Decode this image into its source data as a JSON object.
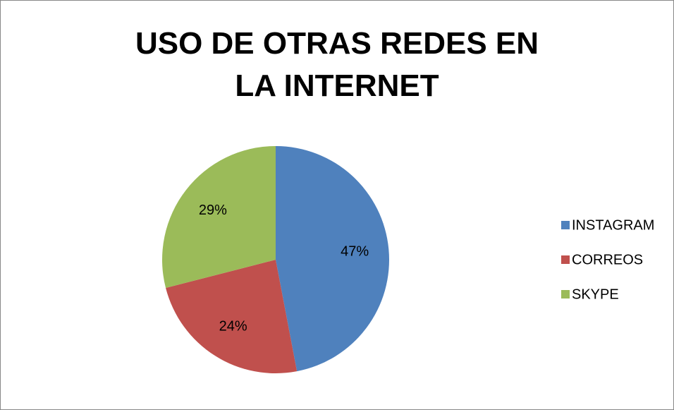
{
  "chart_data": {
    "type": "pie",
    "title": "USO DE OTRAS REDES EN LA INTERNET",
    "categories": [
      "INSTAGRAM",
      "CORREOS",
      "SKYPE"
    ],
    "values": [
      47,
      24,
      29
    ],
    "value_labels": [
      "47%",
      "24%",
      "29%"
    ],
    "colors": [
      "#4f81bd",
      "#c0504d",
      "#9bbb59"
    ],
    "legend": "right"
  }
}
